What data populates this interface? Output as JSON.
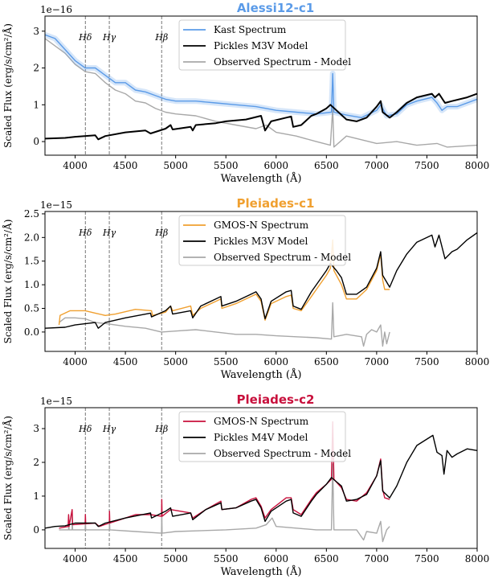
{
  "chart_data": [
    {
      "type": "line",
      "title": "Alessi12-c1",
      "title_color": "#5b9be8",
      "xlabel": "Wavelength (Å)",
      "ylabel": "Scaled Flux (erg/s/cm²/Å)",
      "y_offset_label": "1e−16",
      "xlim": [
        3700,
        8000
      ],
      "ylim": [
        -0.37,
        3.41
      ],
      "xticks": [
        4000,
        4500,
        5000,
        5500,
        6000,
        6500,
        7000,
        7500,
        8000
      ],
      "yticks": [
        0,
        1,
        2,
        3
      ],
      "ytick_labels": [
        "0",
        "1",
        "2",
        "3"
      ],
      "legend_position": "top-center",
      "lines_marked": [
        {
          "label": "Hδ",
          "x": 4102
        },
        {
          "label": "Hγ",
          "x": 4340
        },
        {
          "label": "Hβ",
          "x": 4861
        }
      ],
      "series": [
        {
          "name": "Kast Spectrum",
          "color": "#5b9be8",
          "band": true,
          "x": [
            3700,
            3800,
            3900,
            4000,
            4100,
            4200,
            4300,
            4400,
            4500,
            4600,
            4700,
            4800,
            4900,
            5000,
            5200,
            5400,
            5600,
            5800,
            6000,
            6200,
            6400,
            6550,
            6563,
            6575,
            6700,
            6850,
            7000,
            7040,
            7100,
            7200,
            7300,
            7400,
            7550,
            7600,
            7650,
            7700,
            7800,
            8000
          ],
          "y": [
            2.9,
            2.8,
            2.5,
            2.2,
            2.0,
            2.0,
            1.8,
            1.6,
            1.6,
            1.4,
            1.35,
            1.25,
            1.15,
            1.1,
            1.1,
            1.05,
            1.0,
            0.95,
            0.85,
            0.8,
            0.75,
            0.8,
            1.85,
            0.8,
            0.72,
            0.65,
            0.85,
            1.0,
            0.7,
            0.75,
            1.0,
            1.1,
            1.2,
            1.05,
            0.85,
            0.95,
            0.95,
            1.15
          ]
        },
        {
          "name": "Pickles M3V Model",
          "color": "#000000",
          "x": [
            3700,
            3900,
            4000,
            4200,
            4230,
            4300,
            4500,
            4700,
            4750,
            4900,
            4950,
            4970,
            5150,
            5170,
            5200,
            5400,
            5500,
            5700,
            5850,
            5890,
            5950,
            6100,
            6150,
            6170,
            6250,
            6350,
            6400,
            6500,
            6540,
            6600,
            6700,
            6800,
            6900,
            7000,
            7040,
            7060,
            7130,
            7200,
            7300,
            7400,
            7550,
            7580,
            7620,
            7680,
            7750,
            7900,
            8000
          ],
          "y": [
            0.08,
            0.1,
            0.13,
            0.17,
            0.06,
            0.15,
            0.25,
            0.3,
            0.22,
            0.35,
            0.45,
            0.33,
            0.4,
            0.3,
            0.45,
            0.5,
            0.55,
            0.6,
            0.7,
            0.3,
            0.55,
            0.65,
            0.68,
            0.4,
            0.45,
            0.7,
            0.75,
            0.9,
            1.0,
            0.85,
            0.6,
            0.55,
            0.65,
            0.95,
            1.1,
            0.8,
            0.65,
            0.8,
            1.05,
            1.2,
            1.3,
            1.2,
            1.3,
            1.05,
            1.1,
            1.2,
            1.3
          ]
        },
        {
          "name": "Observed Spectrum - Model",
          "color": "#a8a8a8",
          "x": [
            3700,
            3900,
            4000,
            4100,
            4200,
            4300,
            4400,
            4500,
            4600,
            4700,
            4800,
            4900,
            5000,
            5200,
            5400,
            5600,
            5800,
            5900,
            6000,
            6200,
            6400,
            6540,
            6563,
            6575,
            6700,
            6850,
            7000,
            7200,
            7400,
            7600,
            7700,
            8000
          ],
          "y": [
            2.8,
            2.4,
            2.1,
            1.9,
            1.85,
            1.6,
            1.4,
            1.3,
            1.1,
            1.05,
            0.9,
            0.8,
            0.75,
            0.7,
            0.55,
            0.45,
            0.35,
            0.45,
            0.25,
            0.15,
            0.0,
            -0.1,
            0.9,
            -0.15,
            0.15,
            0.05,
            -0.05,
            0.0,
            -0.1,
            -0.05,
            -0.15,
            -0.1
          ]
        }
      ]
    },
    {
      "type": "line",
      "title": "Pleiades-c1",
      "title_color": "#f0a030",
      "xlabel": "Wavelength (Å)",
      "ylabel": "Scaled Flux (erg/s/cm²/Å)",
      "y_offset_label": "1e−15",
      "xlim": [
        3700,
        8000
      ],
      "ylim": [
        -0.41,
        2.55
      ],
      "xticks": [
        4000,
        4500,
        5000,
        5500,
        6000,
        6500,
        7000,
        7500,
        8000
      ],
      "yticks": [
        0,
        0.5,
        1.0,
        1.5,
        2.0,
        2.5
      ],
      "ytick_labels": [
        "0.0",
        "0.5",
        "1.0",
        "1.5",
        "2.0",
        "2.5"
      ],
      "legend_position": "top-center",
      "lines_marked": [
        {
          "label": "Hδ",
          "x": 4102
        },
        {
          "label": "Hγ",
          "x": 4340
        },
        {
          "label": "Hβ",
          "x": 4861
        }
      ],
      "series": [
        {
          "name": "GMOS-N Spectrum",
          "color": "#f0a030",
          "x": [
            3840,
            3850,
            3950,
            4100,
            4200,
            4300,
            4400,
            4600,
            4760,
            4770,
            4900,
            4950,
            4970,
            5150,
            5170,
            5250,
            5400,
            5450,
            5460,
            5600,
            5750,
            5800,
            5850,
            5890,
            5950,
            6100,
            6150,
            6170,
            6250,
            6350,
            6400,
            6500,
            6540,
            6563,
            6575,
            6650,
            6700,
            6800,
            6900,
            7000,
            7040,
            7060,
            7080,
            7130
          ],
          "y": [
            0.15,
            0.35,
            0.45,
            0.45,
            0.4,
            0.35,
            0.38,
            0.48,
            0.45,
            0.35,
            0.42,
            0.55,
            0.45,
            0.55,
            0.35,
            0.5,
            0.65,
            0.7,
            0.5,
            0.6,
            0.75,
            0.8,
            0.65,
            0.25,
            0.6,
            0.75,
            0.78,
            0.5,
            0.45,
            0.75,
            0.9,
            1.2,
            1.35,
            1.95,
            1.3,
            1.0,
            0.7,
            0.7,
            0.9,
            1.3,
            1.65,
            1.1,
            0.9,
            0.9
          ]
        },
        {
          "name": "Pickles M3V Model",
          "color": "#000000",
          "x": [
            3700,
            3900,
            4000,
            4200,
            4230,
            4300,
            4500,
            4750,
            4760,
            4900,
            4950,
            4970,
            5150,
            5170,
            5250,
            5400,
            5450,
            5460,
            5600,
            5750,
            5800,
            5850,
            5890,
            5950,
            6100,
            6150,
            6170,
            6250,
            6350,
            6400,
            6500,
            6540,
            6600,
            6650,
            6700,
            6800,
            6900,
            7000,
            7040,
            7060,
            7130,
            7200,
            7300,
            7400,
            7550,
            7580,
            7620,
            7680,
            7750,
            7800,
            7900,
            8000
          ],
          "y": [
            0.08,
            0.1,
            0.15,
            0.2,
            0.08,
            0.2,
            0.3,
            0.4,
            0.32,
            0.45,
            0.55,
            0.38,
            0.45,
            0.3,
            0.55,
            0.7,
            0.75,
            0.55,
            0.65,
            0.8,
            0.85,
            0.7,
            0.28,
            0.65,
            0.85,
            0.88,
            0.55,
            0.48,
            0.85,
            1.0,
            1.3,
            1.45,
            1.3,
            1.15,
            0.8,
            0.8,
            0.95,
            1.35,
            1.7,
            1.2,
            0.95,
            1.3,
            1.65,
            1.9,
            2.05,
            1.8,
            2.05,
            1.55,
            1.7,
            1.75,
            1.95,
            2.1
          ]
        },
        {
          "name": "Observed Spectrum - Model",
          "color": "#a8a8a8",
          "x": [
            3840,
            3900,
            4000,
            4100,
            4200,
            4300,
            4400,
            4500,
            4700,
            4860,
            5000,
            5200,
            5400,
            5600,
            5800,
            6000,
            6200,
            6400,
            6550,
            6563,
            6575,
            6700,
            6850,
            6870,
            6900,
            6950,
            7000,
            7040,
            7060,
            7080,
            7100,
            7130
          ],
          "y": [
            0.2,
            0.3,
            0.3,
            0.28,
            0.2,
            0.18,
            0.15,
            0.12,
            0.08,
            0.0,
            0.02,
            0.05,
            0.0,
            -0.05,
            -0.05,
            -0.08,
            -0.1,
            -0.12,
            -0.15,
            0.62,
            -0.1,
            -0.05,
            -0.1,
            -0.3,
            -0.05,
            0.05,
            0.0,
            0.15,
            -0.3,
            0.0,
            -0.25,
            0.0
          ]
        }
      ]
    },
    {
      "type": "line",
      "title": "Pleiades-c2",
      "title_color": "#c8103c",
      "xlabel": "Wavelength (Å)",
      "ylabel": "Scaled Flux (erg/s/cm²/Å)",
      "y_offset_label": "1e−15",
      "xlim": [
        3700,
        8000
      ],
      "ylim": [
        -0.55,
        3.62
      ],
      "xticks": [
        4000,
        4500,
        5000,
        5500,
        6000,
        6500,
        7000,
        7500,
        8000
      ],
      "yticks": [
        0,
        1,
        2,
        3
      ],
      "ytick_labels": [
        "0",
        "1",
        "2",
        "3"
      ],
      "legend_position": "top-center",
      "lines_marked": [
        {
          "label": "Hδ",
          "x": 4102
        },
        {
          "label": "Hγ",
          "x": 4340
        },
        {
          "label": "Hβ",
          "x": 4861
        }
      ],
      "series": [
        {
          "name": "GMOS-N Spectrum",
          "color": "#c8103c",
          "x": [
            3840,
            3930,
            3935,
            3940,
            3970,
            3975,
            4100,
            4102,
            4105,
            4200,
            4240,
            4340,
            4342,
            4345,
            4500,
            4600,
            4750,
            4860,
            4862,
            4865,
            4950,
            5150,
            5170,
            5300,
            5450,
            5460,
            5600,
            5750,
            5800,
            5850,
            5890,
            5950,
            6100,
            6150,
            6170,
            6250,
            6350,
            6400,
            6500,
            6550,
            6563,
            6575,
            6650,
            6700,
            6800,
            6900,
            7000,
            7040,
            7060,
            7080,
            7130
          ],
          "y": [
            0.05,
            0.1,
            0.45,
            0.1,
            0.6,
            0.15,
            0.18,
            0.45,
            0.18,
            0.2,
            0.1,
            0.2,
            0.55,
            0.2,
            0.35,
            0.45,
            0.45,
            0.4,
            0.9,
            0.4,
            0.6,
            0.5,
            0.35,
            0.6,
            0.85,
            0.6,
            0.65,
            0.9,
            0.95,
            0.7,
            0.35,
            0.6,
            0.95,
            0.95,
            0.6,
            0.45,
            0.9,
            1.1,
            1.35,
            1.5,
            3.2,
            1.5,
            1.25,
            0.9,
            0.85,
            1.1,
            1.6,
            2.1,
            1.2,
            0.95,
            0.9
          ]
        },
        {
          "name": "Pickles M4V Model",
          "color": "#000000",
          "x": [
            3700,
            3800,
            3900,
            4000,
            4200,
            4230,
            4300,
            4500,
            4750,
            4760,
            4900,
            4950,
            4970,
            5150,
            5170,
            5300,
            5450,
            5460,
            5600,
            5750,
            5800,
            5850,
            5890,
            5950,
            6100,
            6150,
            6170,
            6250,
            6350,
            6400,
            6500,
            6550,
            6650,
            6700,
            6800,
            6900,
            7000,
            7040,
            7060,
            7130,
            7200,
            7300,
            7400,
            7560,
            7600,
            7650,
            7670,
            7700,
            7750,
            7800,
            7900,
            8000
          ],
          "y": [
            0.05,
            0.1,
            0.12,
            0.2,
            0.2,
            0.1,
            0.2,
            0.35,
            0.5,
            0.35,
            0.55,
            0.65,
            0.4,
            0.5,
            0.3,
            0.6,
            0.8,
            0.6,
            0.65,
            0.85,
            0.9,
            0.65,
            0.25,
            0.55,
            0.85,
            0.9,
            0.5,
            0.4,
            0.85,
            1.05,
            1.35,
            1.55,
            1.3,
            0.85,
            0.9,
            1.05,
            1.6,
            2.05,
            1.15,
            0.95,
            1.3,
            2.0,
            2.5,
            2.8,
            2.3,
            2.2,
            1.65,
            2.35,
            2.15,
            2.25,
            2.4,
            2.35
          ]
        },
        {
          "name": "Observed Spectrum - Model",
          "color": "#a8a8a8",
          "x": [
            3840,
            3935,
            3936,
            3940,
            3970,
            3971,
            3975,
            4100,
            4102,
            4105,
            4340,
            4342,
            4345,
            4600,
            4860,
            4862,
            4865,
            5000,
            5500,
            5800,
            5900,
            5960,
            6000,
            6200,
            6400,
            6550,
            6563,
            6575,
            6800,
            6870,
            6900,
            7000,
            7040,
            7060,
            7100,
            7130
          ],
          "y": [
            0.0,
            0.0,
            0.3,
            0.0,
            0.0,
            0.45,
            0.0,
            0.0,
            0.25,
            0.0,
            0.0,
            0.35,
            0.0,
            -0.05,
            -0.1,
            0.55,
            -0.1,
            -0.05,
            0.0,
            0.05,
            0.15,
            0.35,
            0.1,
            0.05,
            0.0,
            0.0,
            1.95,
            0.0,
            0.0,
            -0.3,
            -0.05,
            -0.1,
            0.25,
            -0.35,
            0.0,
            0.1
          ]
        }
      ]
    }
  ]
}
